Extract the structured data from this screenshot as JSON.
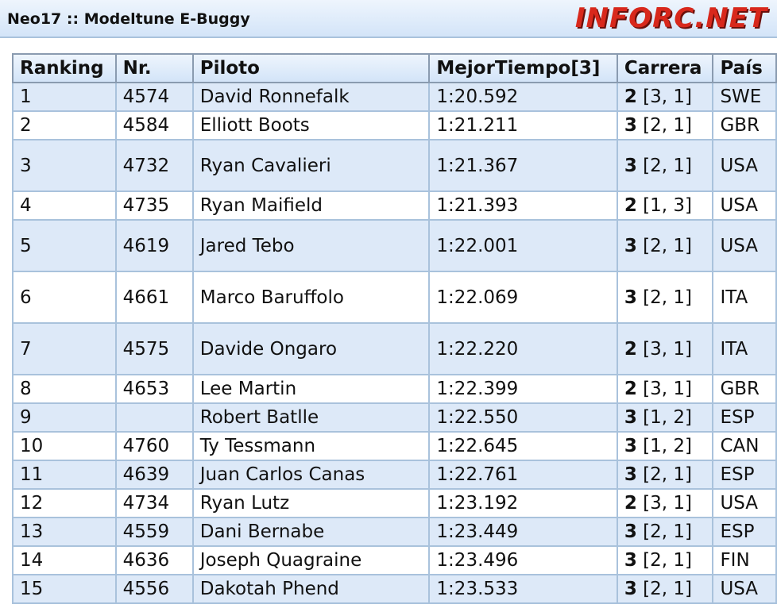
{
  "title": "Neo17 :: Modeltune E-Buggy",
  "columns": [
    "Ranking",
    "Nr.",
    "Piloto",
    "MejorTiempo[3]",
    "Carrera",
    "País"
  ],
  "rows": [
    {
      "rank": "1",
      "nr": "4574",
      "pilot": "David Ronnefalk",
      "time": "1:20.592",
      "race": "2",
      "laps": "[3, 1]",
      "country": "SWE"
    },
    {
      "rank": "2",
      "nr": "4584",
      "pilot": "Elliott Boots",
      "time": "1:21.211",
      "race": "3",
      "laps": "[2, 1]",
      "country": "GBR"
    },
    {
      "rank": "3",
      "nr": "4732",
      "pilot": "Ryan Cavalieri",
      "time": "1:21.367",
      "race": "3",
      "laps": "[2, 1]",
      "country": "USA"
    },
    {
      "rank": "4",
      "nr": "4735",
      "pilot": "Ryan Maifield",
      "time": "1:21.393",
      "race": "2",
      "laps": "[1, 3]",
      "country": "USA"
    },
    {
      "rank": "5",
      "nr": "4619",
      "pilot": "Jared Tebo",
      "time": "1:22.001",
      "race": "3",
      "laps": "[2, 1]",
      "country": "USA"
    },
    {
      "rank": "6",
      "nr": "4661",
      "pilot": "Marco Baruffolo",
      "time": "1:22.069",
      "race": "3",
      "laps": "[2, 1]",
      "country": "ITA"
    },
    {
      "rank": "7",
      "nr": "4575",
      "pilot": "Davide Ongaro",
      "time": "1:22.220",
      "race": "2",
      "laps": "[3, 1]",
      "country": "ITA"
    },
    {
      "rank": "8",
      "nr": "4653",
      "pilot": "Lee Martin",
      "time": "1:22.399",
      "race": "2",
      "laps": "[3, 1]",
      "country": "GBR"
    },
    {
      "rank": "9",
      "nr": "",
      "pilot": "Robert Batlle",
      "time": "1:22.550",
      "race": "3",
      "laps": "[1, 2]",
      "country": "ESP"
    },
    {
      "rank": "10",
      "nr": "4760",
      "pilot": "Ty Tessmann",
      "time": "1:22.645",
      "race": "3",
      "laps": "[1, 2]",
      "country": "CAN"
    },
    {
      "rank": "11",
      "nr": "4639",
      "pilot": "Juan Carlos Canas",
      "time": "1:22.761",
      "race": "3",
      "laps": "[2, 1]",
      "country": "ESP"
    },
    {
      "rank": "12",
      "nr": "4734",
      "pilot": "Ryan Lutz",
      "time": "1:23.192",
      "race": "2",
      "laps": "[3, 1]",
      "country": "USA"
    },
    {
      "rank": "13",
      "nr": "4559",
      "pilot": "Dani Bernabe",
      "time": "1:23.449",
      "race": "3",
      "laps": "[2, 1]",
      "country": "ESP"
    },
    {
      "rank": "14",
      "nr": "4636",
      "pilot": "Joseph Quagraine",
      "time": "1:23.496",
      "race": "3",
      "laps": "[2, 1]",
      "country": "FIN"
    },
    {
      "rank": "15",
      "nr": "4556",
      "pilot": "Dakotah Phend",
      "time": "1:23.533",
      "race": "3",
      "laps": "[2, 1]",
      "country": "USA"
    }
  ],
  "watermark": "inforc.net"
}
